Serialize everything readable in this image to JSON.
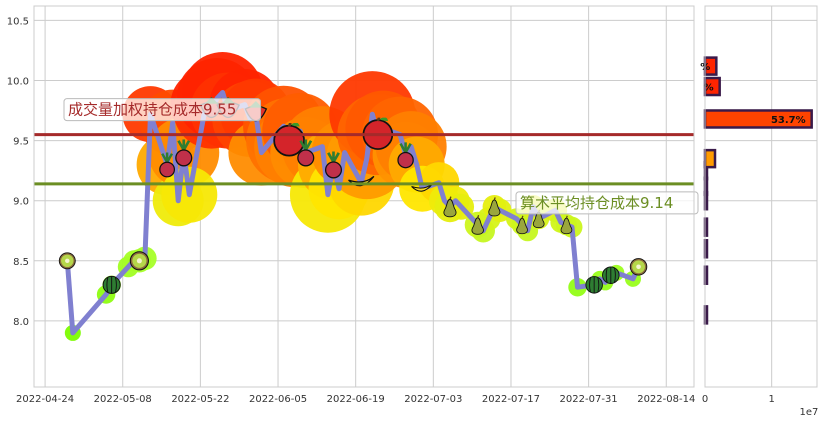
{
  "chart_data": [
    {
      "type": "line",
      "x_dates": [
        "2022-04-28",
        "2022-04-29",
        "2022-05-05",
        "2022-05-06",
        "2022-05-09",
        "2022-05-10",
        "2022-05-11",
        "2022-05-12",
        "2022-05-13",
        "2022-05-16",
        "2022-05-17",
        "2022-05-18",
        "2022-05-19",
        "2022-05-20",
        "2022-05-23",
        "2022-05-24",
        "2022-05-25",
        "2022-05-26",
        "2022-05-27",
        "2022-05-30",
        "2022-05-31",
        "2022-06-01",
        "2022-06-02",
        "2022-06-06",
        "2022-06-07",
        "2022-06-08",
        "2022-06-09",
        "2022-06-10",
        "2022-06-13",
        "2022-06-14",
        "2022-06-15",
        "2022-06-16",
        "2022-06-17",
        "2022-06-20",
        "2022-06-21",
        "2022-06-22",
        "2022-06-23",
        "2022-06-24",
        "2022-06-27",
        "2022-06-28",
        "2022-06-29",
        "2022-06-30",
        "2022-07-01",
        "2022-07-04",
        "2022-07-05",
        "2022-07-06",
        "2022-07-07",
        "2022-07-08",
        "2022-07-11",
        "2022-07-12",
        "2022-07-13",
        "2022-07-14",
        "2022-07-15",
        "2022-07-18",
        "2022-07-19",
        "2022-07-20",
        "2022-07-21",
        "2022-07-22",
        "2022-07-25",
        "2022-07-26",
        "2022-07-27",
        "2022-07-28",
        "2022-07-29",
        "2022-08-01",
        "2022-08-02",
        "2022-08-03",
        "2022-08-04",
        "2022-08-05",
        "2022-08-08",
        "2022-08-09"
      ],
      "y": [
        8.5,
        7.9,
        8.22,
        8.3,
        8.45,
        8.5,
        8.5,
        8.52,
        9.72,
        9.3,
        9.65,
        9.0,
        9.4,
        9.05,
        9.8,
        9.75,
        9.85,
        9.9,
        9.75,
        9.8,
        9.68,
        9.72,
        9.4,
        9.62,
        9.5,
        9.45,
        9.58,
        9.4,
        9.45,
        9.05,
        9.3,
        9.1,
        9.4,
        9.15,
        9.35,
        9.72,
        9.55,
        9.6,
        9.55,
        9.38,
        9.45,
        9.3,
        9.1,
        9.15,
        9.0,
        8.95,
        9.0,
        8.95,
        8.8,
        8.75,
        8.85,
        8.95,
        8.92,
        8.85,
        8.8,
        8.75,
        8.95,
        8.85,
        8.92,
        8.82,
        8.8,
        8.78,
        8.28,
        8.3,
        8.35,
        8.32,
        8.38,
        8.4,
        8.35,
        8.45
      ],
      "sizes": [
        3,
        4,
        5,
        5,
        6,
        6,
        7,
        7,
        20,
        22,
        24,
        18,
        26,
        20,
        26,
        28,
        30,
        30,
        28,
        26,
        28,
        26,
        24,
        30,
        32,
        30,
        28,
        26,
        30,
        28,
        26,
        22,
        24,
        24,
        30,
        32,
        30,
        28,
        28,
        24,
        26,
        20,
        16,
        14,
        10,
        10,
        9,
        8,
        8,
        7,
        7,
        7,
        7,
        6,
        6,
        6,
        7,
        6,
        7,
        6,
        6,
        6,
        5,
        4,
        4,
        4,
        4,
        4,
        4,
        4
      ],
      "xticks": [
        "2022-04-24",
        "2022-05-08",
        "2022-05-22",
        "2022-06-05",
        "2022-06-19",
        "2022-07-03",
        "2022-07-17",
        "2022-07-31",
        "2022-08-14"
      ],
      "yticks": [
        "8.0",
        "8.5",
        "9.0",
        "9.5",
        "10.0",
        "10.5"
      ],
      "ylim": [
        7.45,
        10.62
      ],
      "xlim": [
        "2022-04-22",
        "2022-08-19"
      ],
      "grid": true,
      "line_color": "#8080d0",
      "hlines": [
        {
          "label": "成交量加权持仓成本9.55",
          "value": 9.55,
          "color": "#a52a2a"
        },
        {
          "label": "算术平均持仓成本9.14",
          "value": 9.14,
          "color": "#6b8e23"
        }
      ],
      "marker_icons": [
        "watermelon-icon",
        "kiwi-icon",
        "pear-icon",
        "banana-icon",
        "strawberry-icon",
        "apple-icon",
        "radish-icon",
        "pea-pod-icon"
      ]
    },
    {
      "type": "bar",
      "orientation": "horizontal",
      "bins": [
        8.05,
        8.38,
        8.6,
        8.78,
        9.0,
        9.12,
        9.25,
        9.35,
        9.68,
        9.95,
        10.12
      ],
      "values": [
        0.05,
        0.05,
        0.05,
        0.05,
        0.08,
        0.1,
        0.12,
        1.5,
        16.0,
        2.2,
        1.7
      ],
      "labels": [
        "",
        "",
        "",
        "",
        "",
        "",
        "",
        "",
        "53.7%",
        "%",
        "%"
      ],
      "xticks": [
        "0",
        "1"
      ],
      "xlim": [
        0,
        16.8
      ],
      "offset_text": "1e7"
    }
  ],
  "colors": {
    "grid": "#cccccc",
    "bar_edge": "#3a1a4a",
    "hot": "#ff2400",
    "cold": "#7cfc00"
  }
}
